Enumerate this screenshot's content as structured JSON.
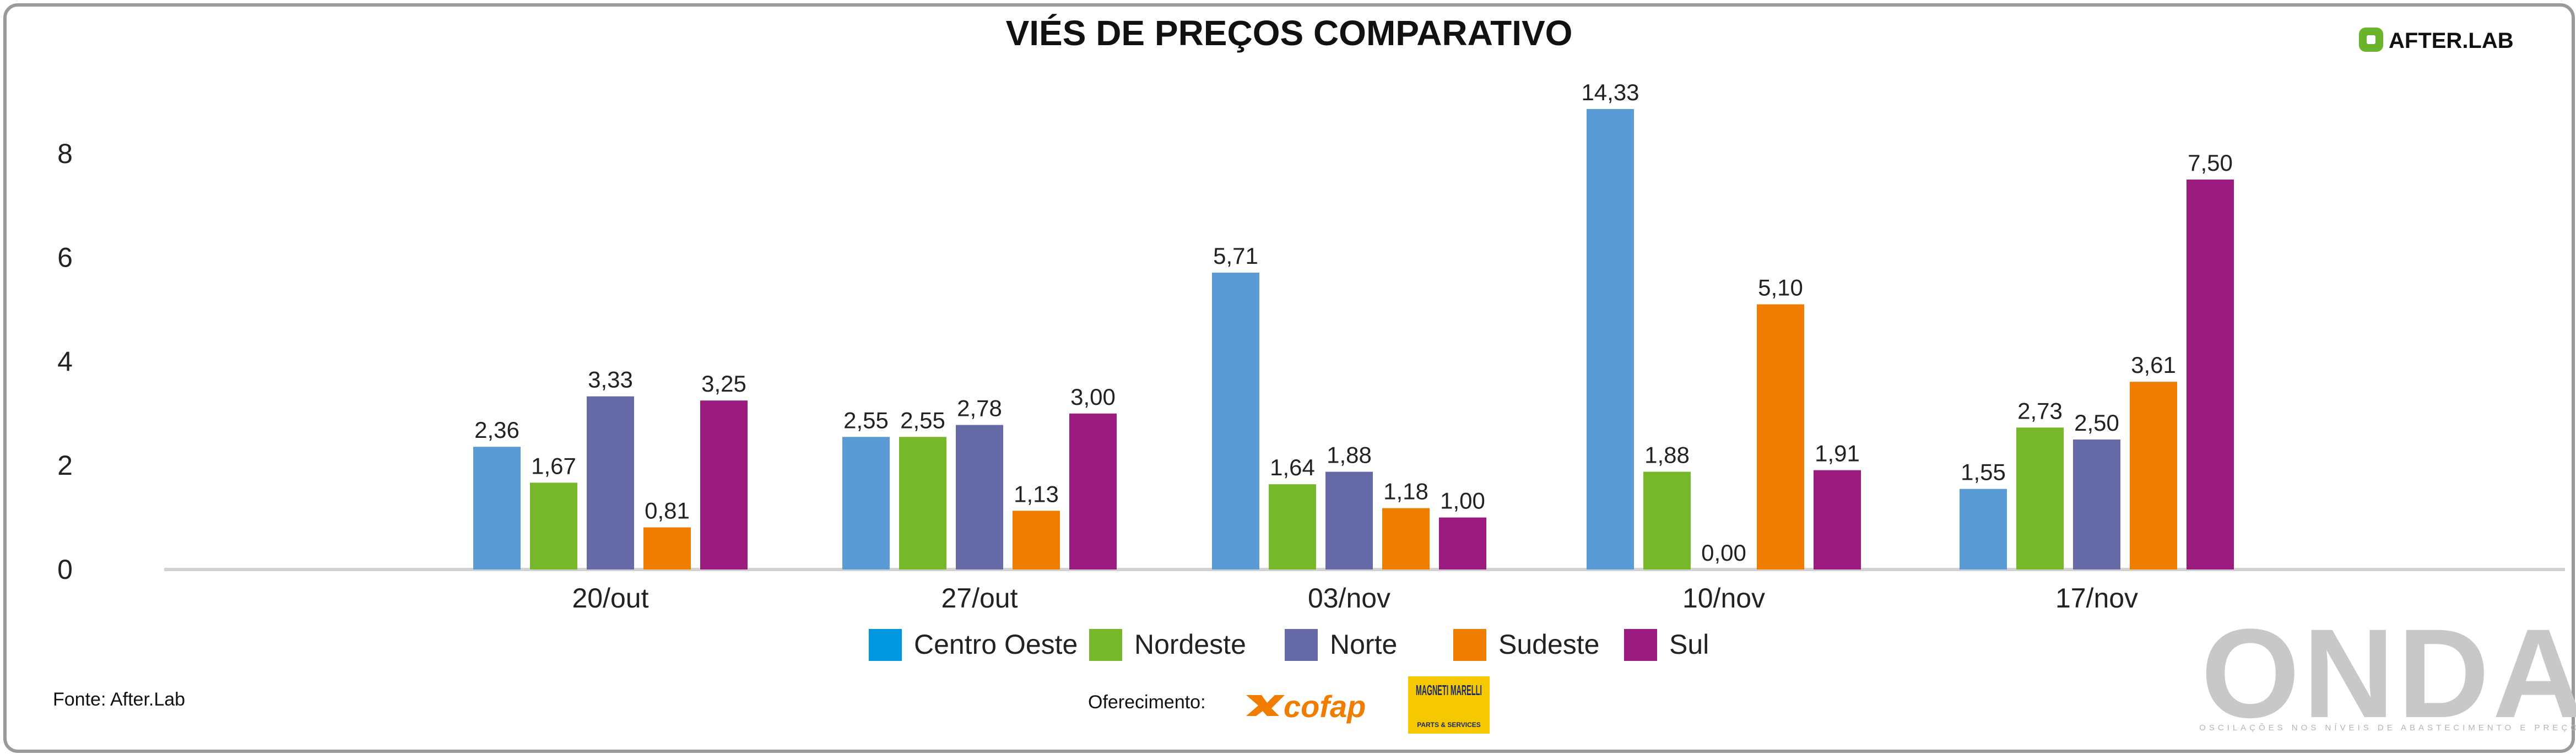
{
  "title": "VIÉS DE PREÇOS COMPARATIVO",
  "brand": {
    "name": "AFTER.LAB",
    "accent": "#6ab42d"
  },
  "source": "Fonte: After.Lab",
  "sponsor": {
    "label": "Oferecimento:",
    "logos": [
      "cofap",
      "MAGNETI MARELLI"
    ],
    "magneti_sub": "PARTS & SERVICES"
  },
  "watermark": {
    "text": "ONDA",
    "tagline": "OSCILAÇÕES NOS NÍVEIS DE ABASTECIMENTO E PREÇOS"
  },
  "chart_data": {
    "type": "bar",
    "title": "VIÉS DE PREÇOS COMPARATIVO",
    "xlabel": "",
    "ylabel": "",
    "categories": [
      "20/out",
      "27/out",
      "03/nov",
      "10/nov",
      "17/nov"
    ],
    "series": [
      {
        "name": "Centro Oeste",
        "color": "#5b9bd5",
        "legend_color": "#0097e0",
        "values": [
          2.36,
          2.55,
          5.71,
          14.33,
          1.55
        ],
        "labels": [
          "2,36",
          "2,55",
          "5,71",
          "14,33",
          "1,55"
        ]
      },
      {
        "name": "Nordeste",
        "color": "#76b82a",
        "legend_color": "#76b82a",
        "values": [
          1.67,
          2.55,
          1.64,
          1.88,
          2.73
        ],
        "labels": [
          "1,67",
          "2,55",
          "1,64",
          "1,88",
          "2,73"
        ]
      },
      {
        "name": "Norte",
        "color": "#666aa6",
        "legend_color": "#666aa6",
        "values": [
          3.33,
          2.78,
          1.88,
          0.0,
          2.5
        ],
        "labels": [
          "3,33",
          "2,78",
          "1,88",
          "0,00",
          "2,50"
        ]
      },
      {
        "name": "Sudeste",
        "color": "#f07c00",
        "legend_color": "#f07c00",
        "values": [
          0.81,
          1.13,
          1.18,
          5.1,
          3.61
        ],
        "labels": [
          "0,81",
          "1,13",
          "1,18",
          "5,10",
          "3,61"
        ]
      },
      {
        "name": "Sul",
        "color": "#9b1b7f",
        "legend_color": "#9b1b7f",
        "values": [
          3.25,
          3.0,
          1.0,
          1.91,
          7.5
        ],
        "labels": [
          "3,25",
          "3,00",
          "1,00",
          "1,91",
          "7,50"
        ]
      }
    ],
    "yticks": [
      0,
      2,
      4,
      6,
      8
    ],
    "ytick_labels": [
      "0",
      "2",
      "4",
      "6",
      "8"
    ],
    "grid": false,
    "legend_position": "bottom"
  }
}
